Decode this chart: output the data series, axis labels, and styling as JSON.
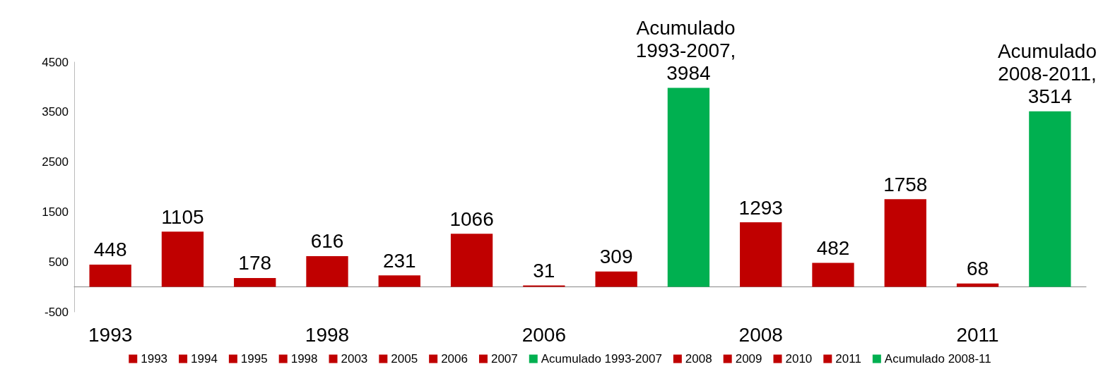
{
  "chart_data": {
    "type": "bar",
    "categories": [
      "1993",
      null,
      null,
      "1998",
      null,
      null,
      "2006",
      null,
      null,
      "2008",
      null,
      null,
      "2011",
      null
    ],
    "ylim": [
      -500,
      4500
    ],
    "yticks": [
      -500,
      500,
      1500,
      2500,
      3500,
      4500
    ],
    "grid": false,
    "legend": "bottom",
    "series": [
      {
        "name": "1993",
        "color": "#c00000",
        "values": [
          448,
          null,
          null,
          null,
          null,
          null,
          null,
          null,
          null,
          null,
          null,
          null,
          null,
          null
        ]
      },
      {
        "name": "1994",
        "color": "#c00000",
        "values": [
          null,
          1105,
          null,
          null,
          null,
          null,
          null,
          null,
          null,
          null,
          null,
          null,
          null,
          null
        ]
      },
      {
        "name": "1995",
        "color": "#c00000",
        "values": [
          null,
          null,
          178,
          null,
          null,
          null,
          null,
          null,
          null,
          null,
          null,
          null,
          null,
          null
        ]
      },
      {
        "name": "1998",
        "color": "#c00000",
        "values": [
          null,
          null,
          null,
          616,
          null,
          null,
          null,
          null,
          null,
          null,
          null,
          null,
          null,
          null
        ]
      },
      {
        "name": "2003",
        "color": "#c00000",
        "values": [
          null,
          null,
          null,
          null,
          231,
          null,
          null,
          null,
          null,
          null,
          null,
          null,
          null,
          null
        ]
      },
      {
        "name": "2005",
        "color": "#c00000",
        "values": [
          null,
          null,
          null,
          null,
          null,
          1066,
          null,
          null,
          null,
          null,
          null,
          null,
          null,
          null
        ]
      },
      {
        "name": "2006",
        "color": "#c00000",
        "values": [
          null,
          null,
          null,
          null,
          null,
          null,
          31,
          null,
          null,
          null,
          null,
          null,
          null,
          null
        ]
      },
      {
        "name": "2007",
        "color": "#c00000",
        "values": [
          null,
          null,
          null,
          null,
          null,
          null,
          null,
          309,
          null,
          null,
          null,
          null,
          null,
          null
        ]
      },
      {
        "name": "Acumulado 1993-2007",
        "color": "#00b050",
        "values": [
          null,
          null,
          null,
          null,
          null,
          null,
          null,
          null,
          3984,
          null,
          null,
          null,
          null,
          null
        ],
        "value_labels": [
          null,
          null,
          null,
          null,
          null,
          null,
          null,
          null,
          "Acumulado 1993-2007, 3984",
          null,
          null,
          null,
          null,
          null
        ]
      },
      {
        "name": "2008",
        "color": "#c00000",
        "values": [
          null,
          null,
          null,
          null,
          null,
          null,
          null,
          null,
          null,
          1293,
          null,
          null,
          null,
          null
        ]
      },
      {
        "name": "2009",
        "color": "#c00000",
        "values": [
          null,
          null,
          null,
          null,
          null,
          null,
          null,
          null,
          null,
          null,
          482,
          null,
          null,
          null
        ]
      },
      {
        "name": "2010",
        "color": "#c00000",
        "values": [
          null,
          null,
          null,
          null,
          null,
          null,
          null,
          null,
          null,
          null,
          null,
          1758,
          null,
          null
        ]
      },
      {
        "name": "2011",
        "color": "#c00000",
        "values": [
          null,
          null,
          null,
          null,
          null,
          null,
          null,
          null,
          null,
          null,
          null,
          null,
          68,
          null
        ]
      },
      {
        "name": "Acumulado 2008-11",
        "color": "#00b050",
        "values": [
          null,
          null,
          null,
          null,
          null,
          null,
          null,
          null,
          null,
          null,
          null,
          null,
          null,
          3514
        ],
        "value_labels": [
          null,
          null,
          null,
          null,
          null,
          null,
          null,
          null,
          null,
          null,
          null,
          null,
          null,
          "Acumulado 2008-2011, 3514"
        ]
      }
    ],
    "data_labels": true
  }
}
